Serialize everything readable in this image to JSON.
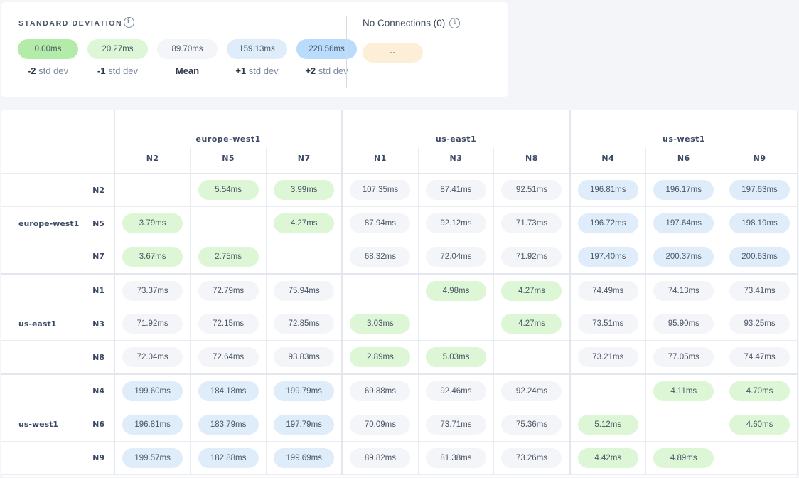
{
  "legend": {
    "title": "STANDARD DEVIATION",
    "info_icon": "info-icon",
    "items": [
      {
        "value": "0.00ms",
        "prefix": "-2",
        "label": " std dev",
        "tone": "g0"
      },
      {
        "value": "20.27ms",
        "prefix": "-1",
        "label": " std dev",
        "tone": "g1"
      },
      {
        "value": "89.70ms",
        "prefix": "",
        "label": "Mean",
        "tone": "m"
      },
      {
        "value": "159.13ms",
        "prefix": "+1",
        "label": " std dev",
        "tone": "b1"
      },
      {
        "value": "228.56ms",
        "prefix": "+2",
        "label": " std dev",
        "tone": "b2"
      }
    ],
    "no_connections": {
      "title": "No Connections (0)",
      "value": "--"
    }
  },
  "colors": {
    "strong_low": "#b3eba8",
    "low": "#dcf6d6",
    "mean": "#f3f5f9",
    "high": "#deedf9",
    "strong_high": "#b9dcfc",
    "no_connection": "#fdefd7"
  },
  "matrix": {
    "groups": [
      {
        "name": "europe-west1",
        "nodes": [
          "N2",
          "N5",
          "N7"
        ]
      },
      {
        "name": "us-east1",
        "nodes": [
          "N1",
          "N3",
          "N8"
        ]
      },
      {
        "name": "us-west1",
        "nodes": [
          "N4",
          "N6",
          "N9"
        ]
      }
    ],
    "rows": [
      {
        "cells": [
          "",
          "5.54ms",
          "3.99ms",
          "107.35ms",
          "87.41ms",
          "92.51ms",
          "196.81ms",
          "196.17ms",
          "197.63ms"
        ],
        "tones": [
          "",
          "g1",
          "g1",
          "m",
          "m",
          "m",
          "b1",
          "b1",
          "b1"
        ]
      },
      {
        "cells": [
          "3.79ms",
          "",
          "4.27ms",
          "87.94ms",
          "92.12ms",
          "71.73ms",
          "196.72ms",
          "197.64ms",
          "198.19ms"
        ],
        "tones": [
          "g1",
          "",
          "g1",
          "m",
          "m",
          "m",
          "b1",
          "b1",
          "b1"
        ]
      },
      {
        "cells": [
          "3.67ms",
          "2.75ms",
          "",
          "68.32ms",
          "72.04ms",
          "71.92ms",
          "197.40ms",
          "200.37ms",
          "200.63ms"
        ],
        "tones": [
          "g1",
          "g1",
          "",
          "m",
          "m",
          "m",
          "b1",
          "b1",
          "b1"
        ]
      },
      {
        "cells": [
          "73.37ms",
          "72.79ms",
          "75.94ms",
          "",
          "4.98ms",
          "4.27ms",
          "74.49ms",
          "74.13ms",
          "73.41ms"
        ],
        "tones": [
          "m",
          "m",
          "m",
          "",
          "g1",
          "g1",
          "m",
          "m",
          "m"
        ]
      },
      {
        "cells": [
          "71.92ms",
          "72.15ms",
          "72.85ms",
          "3.03ms",
          "",
          "4.27ms",
          "73.51ms",
          "95.90ms",
          "93.25ms"
        ],
        "tones": [
          "m",
          "m",
          "m",
          "g1",
          "",
          "g1",
          "m",
          "m",
          "m"
        ]
      },
      {
        "cells": [
          "72.04ms",
          "72.64ms",
          "93.83ms",
          "2.89ms",
          "5.03ms",
          "",
          "73.21ms",
          "77.05ms",
          "74.47ms"
        ],
        "tones": [
          "m",
          "m",
          "m",
          "g1",
          "g1",
          "",
          "m",
          "m",
          "m"
        ]
      },
      {
        "cells": [
          "199.60ms",
          "184.18ms",
          "199.79ms",
          "69.88ms",
          "92.46ms",
          "92.24ms",
          "",
          "4.11ms",
          "4.70ms"
        ],
        "tones": [
          "b1",
          "b1",
          "b1",
          "m",
          "m",
          "m",
          "",
          "g1",
          "g1"
        ]
      },
      {
        "cells": [
          "196.81ms",
          "183.79ms",
          "197.79ms",
          "70.09ms",
          "73.71ms",
          "75.36ms",
          "5.12ms",
          "",
          "4.60ms"
        ],
        "tones": [
          "b1",
          "b1",
          "b1",
          "m",
          "m",
          "m",
          "g1",
          "",
          "g1"
        ]
      },
      {
        "cells": [
          "199.57ms",
          "182.88ms",
          "199.69ms",
          "89.82ms",
          "81.38ms",
          "73.26ms",
          "4.42ms",
          "4.89ms",
          ""
        ],
        "tones": [
          "b1",
          "b1",
          "b1",
          "m",
          "m",
          "m",
          "g1",
          "g1",
          ""
        ]
      }
    ]
  }
}
